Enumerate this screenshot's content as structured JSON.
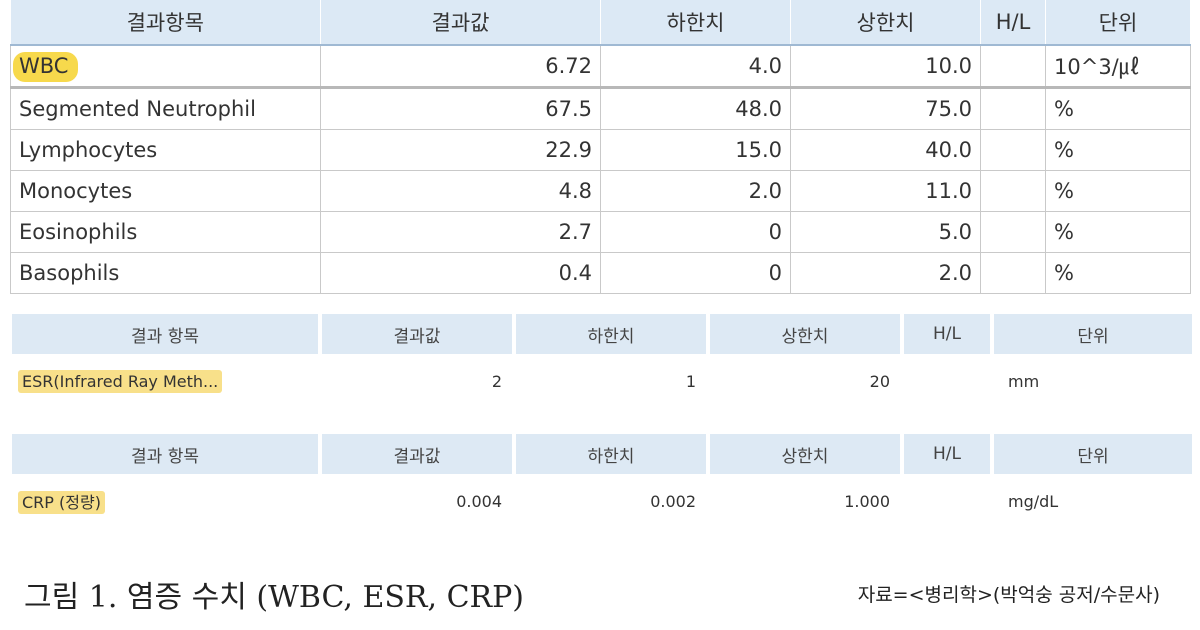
{
  "main_table": {
    "headers": [
      "결과항목",
      "결과값",
      "하한치",
      "상한치",
      "H/L",
      "단위"
    ],
    "rows": [
      {
        "item": "WBC",
        "value": "6.72",
        "low": "4.0",
        "high": "10.0",
        "hl": "",
        "unit": "10^3/㎕"
      },
      {
        "item": "Segmented Neutrophil",
        "value": "67.5",
        "low": "48.0",
        "high": "75.0",
        "hl": "",
        "unit": "%"
      },
      {
        "item": "Lymphocytes",
        "value": "22.9",
        "low": "15.0",
        "high": "40.0",
        "hl": "",
        "unit": "%"
      },
      {
        "item": "Monocytes",
        "value": "4.8",
        "low": "2.0",
        "high": "11.0",
        "hl": "",
        "unit": "%"
      },
      {
        "item": "Eosinophils",
        "value": "2.7",
        "low": "0",
        "high": "5.0",
        "hl": "",
        "unit": "%"
      },
      {
        "item": "Basophils",
        "value": "0.4",
        "low": "0",
        "high": "2.0",
        "hl": "",
        "unit": "%"
      }
    ]
  },
  "esr_table": {
    "headers": [
      "결과 항목",
      "결과값",
      "하한치",
      "상한치",
      "H/L",
      "단위"
    ],
    "row": {
      "item": "ESR(Infrared Ray Meth...",
      "value": "2",
      "low": "1",
      "high": "20",
      "hl": "",
      "unit": "mm"
    }
  },
  "crp_table": {
    "headers": [
      "결과 항목",
      "결과값",
      "하한치",
      "상한치",
      "H/L",
      "단위"
    ],
    "row": {
      "item": "CRP (정량)",
      "value": "0.004",
      "low": "0.002",
      "high": "1.000",
      "hl": "",
      "unit": "mg/dL"
    }
  },
  "caption": "그림 1. 염증 수치 (WBC, ESR, CRP)",
  "source": "자료=<병리학>(박억숭 공저/수문사)",
  "colors": {
    "header_bg": "#dce9f5",
    "highlight": "#f7d94c"
  }
}
